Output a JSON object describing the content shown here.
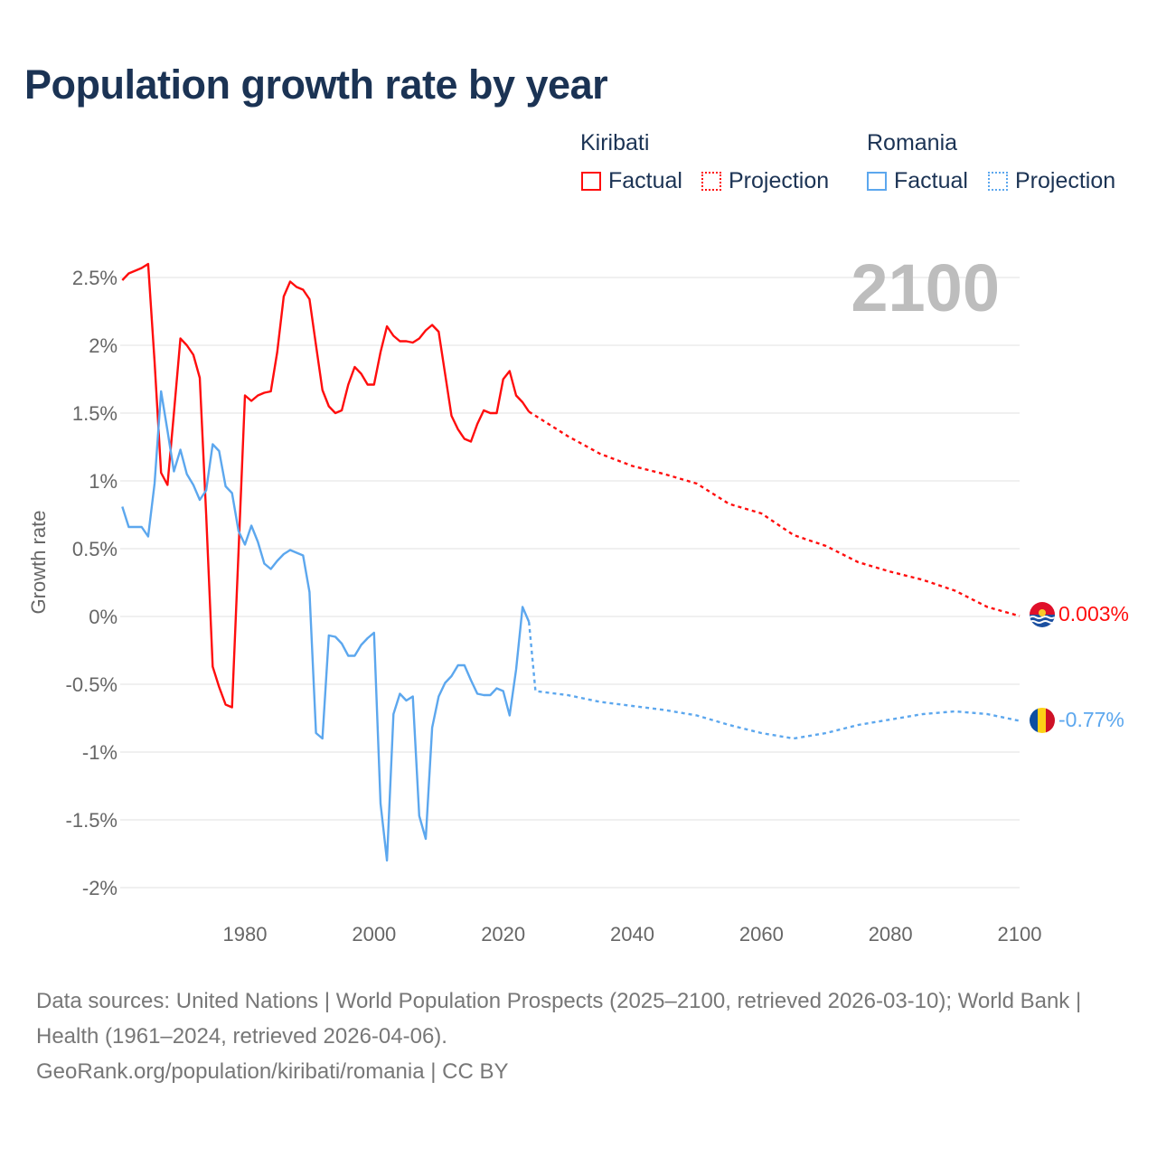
{
  "colors": {
    "kiribati": "#ff0d0d",
    "romania": "#5ca7ee",
    "title": "#1b3354",
    "grid": "#e6e6e6"
  },
  "legend": {
    "groups": [
      {
        "name": "Kiribati",
        "factual": "Factual",
        "projection": "Projection"
      },
      {
        "name": "Romania",
        "factual": "Factual",
        "projection": "Projection"
      }
    ]
  },
  "chart_data": {
    "type": "line",
    "title": "Population growth rate by year",
    "xlabel": "",
    "ylabel": "Growth rate",
    "xlim": [
      1961,
      2100
    ],
    "ylim": [
      -2,
      2.5
    ],
    "grid": true,
    "legend_position": "top-right",
    "current_year_label": "2100",
    "x_ticks": [
      1980,
      2000,
      2020,
      2040,
      2060,
      2080,
      2100
    ],
    "y_ticks": [
      2.5,
      2,
      1.5,
      1,
      0.5,
      0,
      -0.5,
      -1,
      -1.5,
      -2
    ],
    "y_tick_labels": [
      "2.5%",
      "2%",
      "1.5%",
      "1%",
      "0.5%",
      "0%",
      "-0.5%",
      "-1%",
      "-1.5%",
      "-2%"
    ],
    "x_tick_labels": [
      "1980",
      "2000",
      "2020",
      "2040",
      "2060",
      "2080",
      "2100"
    ],
    "series": [
      {
        "name": "Kiribati Factual",
        "country": "Kiribati",
        "kind": "factual",
        "start_year": 1961,
        "values": [
          2.48,
          2.53,
          2.55,
          2.57,
          2.6,
          1.88,
          1.06,
          0.97,
          1.5,
          2.05,
          2.0,
          1.93,
          1.76,
          0.75,
          -0.37,
          -0.52,
          -0.65,
          -0.67,
          0.48,
          1.63,
          1.59,
          1.63,
          1.65,
          1.66,
          1.95,
          2.36,
          2.47,
          2.43,
          2.41,
          2.34,
          2.0,
          1.67,
          1.55,
          1.5,
          1.52,
          1.71,
          1.84,
          1.79,
          1.71,
          1.71,
          1.95,
          2.14,
          2.07,
          2.03,
          2.03,
          2.02,
          2.05,
          2.11,
          2.15,
          2.1,
          1.79,
          1.48,
          1.38,
          1.31,
          1.29,
          1.42,
          1.52,
          1.5,
          1.5,
          1.75,
          1.81,
          1.63,
          1.58,
          1.51
        ]
      },
      {
        "name": "Kiribati Projection",
        "country": "Kiribati",
        "kind": "projection",
        "x": [
          2024,
          2025,
          2030,
          2035,
          2040,
          2045,
          2050,
          2055,
          2060,
          2065,
          2070,
          2075,
          2080,
          2085,
          2090,
          2095,
          2100
        ],
        "values": [
          1.51,
          1.48,
          1.33,
          1.2,
          1.11,
          1.05,
          0.98,
          0.83,
          0.76,
          0.6,
          0.52,
          0.4,
          0.33,
          0.27,
          0.19,
          0.07,
          0.003
        ]
      },
      {
        "name": "Romania Factual",
        "country": "Romania",
        "kind": "factual",
        "start_year": 1961,
        "values": [
          0.81,
          0.66,
          0.66,
          0.66,
          0.59,
          0.98,
          1.66,
          1.37,
          1.07,
          1.23,
          1.05,
          0.97,
          0.86,
          0.93,
          1.27,
          1.22,
          0.96,
          0.91,
          0.63,
          0.53,
          0.67,
          0.55,
          0.39,
          0.35,
          0.41,
          0.46,
          0.49,
          0.47,
          0.45,
          0.18,
          -0.86,
          -0.9,
          -0.14,
          -0.15,
          -0.2,
          -0.29,
          -0.29,
          -0.21,
          -0.16,
          -0.12,
          -1.38,
          -1.8,
          -0.72,
          -0.57,
          -0.62,
          -0.59,
          -1.47,
          -1.64,
          -0.82,
          -0.59,
          -0.49,
          -0.44,
          -0.36,
          -0.36,
          -0.47,
          -0.57,
          -0.58,
          -0.58,
          -0.53,
          -0.55,
          -0.73,
          -0.39,
          0.07,
          -0.04
        ]
      },
      {
        "name": "Romania Projection",
        "country": "Romania",
        "kind": "projection",
        "x": [
          2024,
          2025,
          2030,
          2035,
          2040,
          2045,
          2050,
          2055,
          2060,
          2065,
          2070,
          2075,
          2080,
          2085,
          2090,
          2095,
          2100
        ],
        "values": [
          -0.04,
          -0.55,
          -0.58,
          -0.63,
          -0.66,
          -0.69,
          -0.73,
          -0.8,
          -0.86,
          -0.9,
          -0.86,
          -0.8,
          -0.76,
          -0.72,
          -0.7,
          -0.72,
          -0.77
        ]
      }
    ],
    "end_labels": [
      {
        "country": "Kiribati",
        "value": 0.003,
        "text": "0.003%",
        "flag": "kiribati-flag"
      },
      {
        "country": "Romania",
        "value": -0.77,
        "text": "-0.77%",
        "flag": "romania-flag"
      }
    ]
  },
  "footer": {
    "sources": "Data sources: United Nations | World Population Prospects (2025–2100, retrieved 2026-03-10); World Bank | Health (1961–2024, retrieved 2026-04-06).",
    "credit": "GeoRank.org/population/kiribati/romania | CC BY"
  }
}
